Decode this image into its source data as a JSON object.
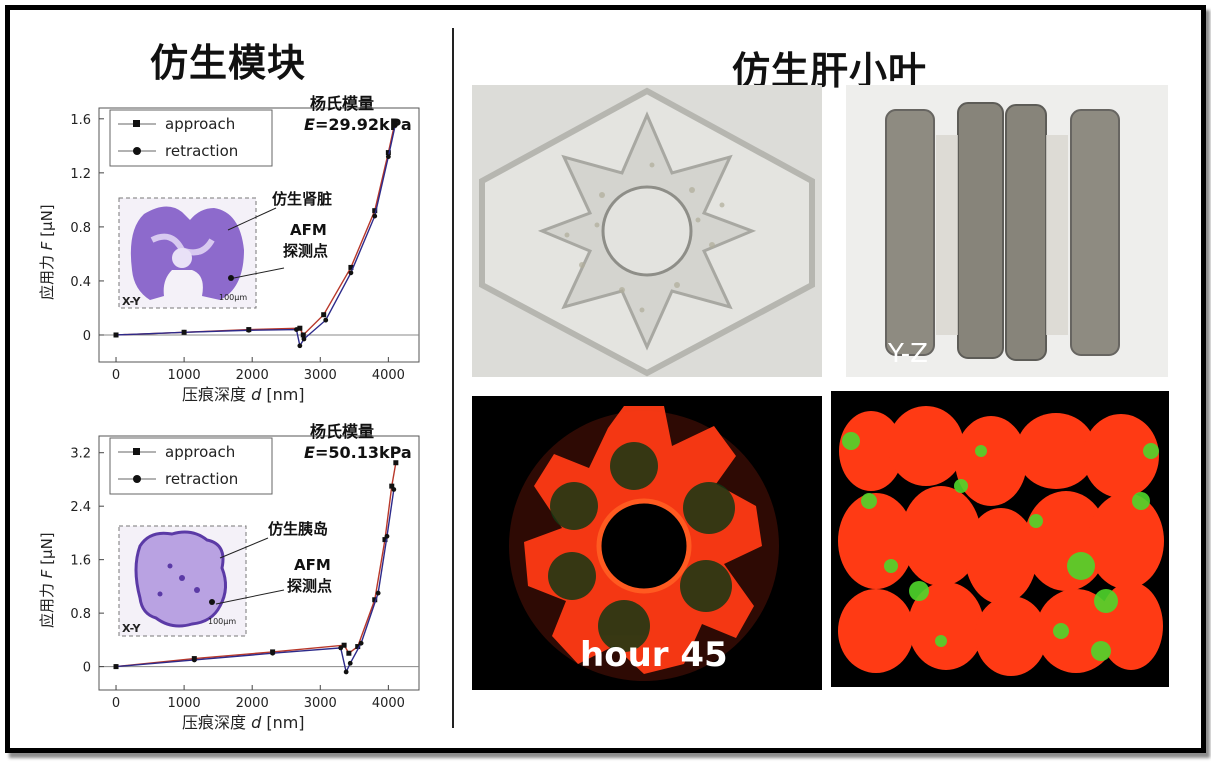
{
  "left_title": "仿生模块",
  "right_title": "仿生肝小叶",
  "chart_data": [
    {
      "type": "line",
      "ylabel_pre": "应用力 ",
      "ylabel_var": "F",
      "ylabel_unit": " [μN]",
      "xlabel_pre": "压痕深度 ",
      "xlabel_var": "d",
      "xlabel_unit": " [nm]",
      "xlim": [
        -250,
        4450
      ],
      "ylim": [
        -0.2,
        1.68
      ],
      "xticks": [
        "0",
        "1000",
        "2000",
        "3000",
        "4000"
      ],
      "yticks": [
        "0",
        "0.4",
        "0.8",
        "1.2",
        "1.6"
      ],
      "xtick_values": [
        0,
        1000,
        2000,
        3000,
        4000
      ],
      "ytick_values": [
        0,
        0.4,
        0.8,
        1.2,
        1.6
      ],
      "legend": [
        "approach",
        "retraction"
      ],
      "annotation_title": "杨氏模量",
      "annotation_value_var": "E",
      "annotation_value": "=29.92kPa",
      "inset_label1": "仿生肾脏",
      "inset_label2a": "AFM",
      "inset_label2b": "探测点",
      "inset_axis_label": "X-Y",
      "inset_scale": "100μm",
      "series": [
        {
          "name": "approach",
          "x": [
            0,
            1000,
            1950,
            2700,
            2750,
            3050,
            3450,
            3800,
            4000,
            4100
          ],
          "y": [
            0.0,
            0.02,
            0.04,
            0.05,
            0.0,
            0.15,
            0.5,
            0.92,
            1.35,
            1.58
          ]
        },
        {
          "name": "retraction",
          "x": [
            0,
            1000,
            1950,
            2650,
            2700,
            2760,
            3080,
            3450,
            3800,
            4000,
            4100
          ],
          "y": [
            0.0,
            0.02,
            0.035,
            0.04,
            -0.08,
            -0.03,
            0.11,
            0.46,
            0.88,
            1.32,
            1.55
          ]
        }
      ]
    },
    {
      "type": "line",
      "ylabel_pre": "应用力 ",
      "ylabel_var": "F",
      "ylabel_unit": " [μN]",
      "xlabel_pre": "压痕深度 ",
      "xlabel_var": "d",
      "xlabel_unit": " [nm]",
      "xlim": [
        -250,
        4450
      ],
      "ylim": [
        -0.35,
        3.45
      ],
      "xticks": [
        "0",
        "1000",
        "2000",
        "3000",
        "4000"
      ],
      "yticks": [
        "0",
        "0.8",
        "1.6",
        "2.4",
        "3.2"
      ],
      "xtick_values": [
        0,
        1000,
        2000,
        3000,
        4000
      ],
      "ytick_values": [
        0,
        0.8,
        1.6,
        2.4,
        3.2
      ],
      "legend": [
        "approach",
        "retraction"
      ],
      "annotation_title": "杨氏模量",
      "annotation_value_var": "E",
      "annotation_value": "=50.13kPa",
      "inset_label1": "仿生胰岛",
      "inset_label2a": "AFM",
      "inset_label2b": "探测点",
      "inset_axis_label": "X-Y",
      "inset_scale": "100μm",
      "series": [
        {
          "name": "approach",
          "x": [
            0,
            1150,
            2300,
            3350,
            3420,
            3550,
            3800,
            3950,
            4050,
            4110
          ],
          "y": [
            0.0,
            0.12,
            0.22,
            0.32,
            0.2,
            0.3,
            1.0,
            1.9,
            2.7,
            3.05
          ]
        },
        {
          "name": "retraction",
          "x": [
            0,
            1150,
            2300,
            3300,
            3380,
            3440,
            3600,
            3850,
            3980,
            4080
          ],
          "y": [
            0.0,
            0.1,
            0.2,
            0.28,
            -0.08,
            0.05,
            0.35,
            1.1,
            1.95,
            2.65
          ]
        }
      ]
    }
  ],
  "micro_label_yz": "Y-Z",
  "micro_label_hour": "hour 45",
  "colors": {
    "approach": "#b8382a",
    "retraction": "#2d2a8a",
    "fluor_red": "#ff3a14",
    "fluor_green": "#4fd62c",
    "purple": "#6a3fb5"
  },
  "icons": [
    "approach-legend-square-icon",
    "retraction-legend-circle-icon"
  ]
}
